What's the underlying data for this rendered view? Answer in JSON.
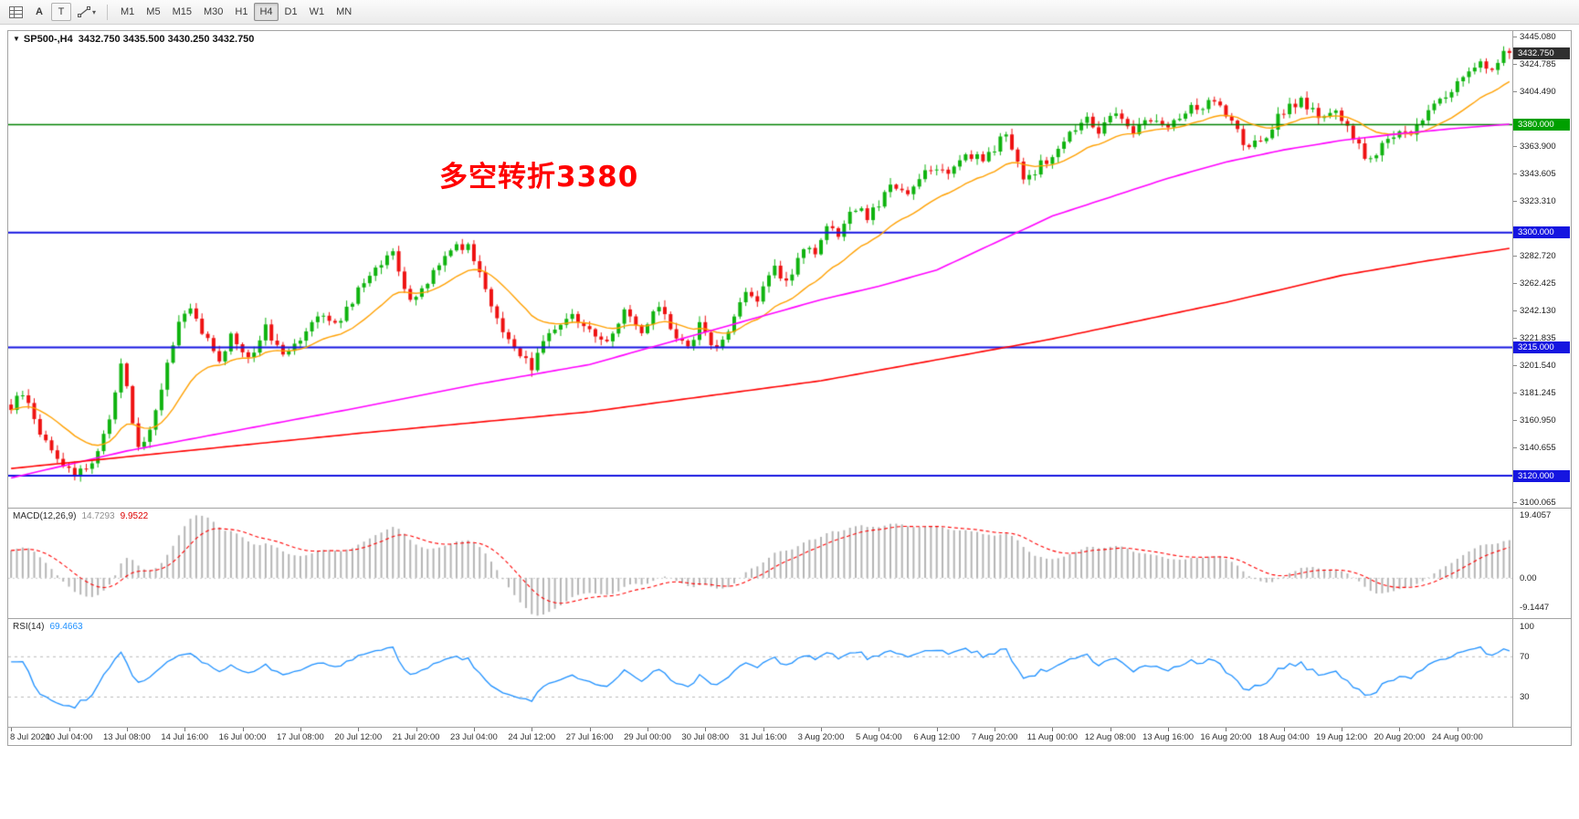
{
  "toolbar": {
    "a_label": "A",
    "t_label": "T",
    "timeframes": [
      "M1",
      "M5",
      "M15",
      "M30",
      "H1",
      "H4",
      "D1",
      "W1",
      "MN"
    ],
    "active_timeframe": "H4"
  },
  "chart": {
    "symbol_text": "SP500-,H4",
    "ohlc_text": "3432.750 3435.500 3430.250 3432.750",
    "annotation": {
      "text": "多空转折3380",
      "color": "#ff0000"
    }
  },
  "price_axis": {
    "ticks": [
      "3445.080",
      "3424.785",
      "3404.490",
      "3384.195",
      "3363.900",
      "3343.605",
      "3323.310",
      "3303.015",
      "3282.720",
      "3262.425",
      "3242.130",
      "3221.835",
      "3201.540",
      "3181.245",
      "3160.950",
      "3140.655",
      "3120.360",
      "3100.065"
    ],
    "boxes": [
      {
        "text": "3432.750",
        "value": 3432.75,
        "bg": "#2f2f2f"
      },
      {
        "text": "3380.000",
        "value": 3380,
        "bg": "#00a000"
      },
      {
        "text": "3300.000",
        "value": 3300,
        "bg": "#1515e0"
      },
      {
        "text": "3215.000",
        "value": 3215,
        "bg": "#1515e0"
      },
      {
        "text": "3120.000",
        "value": 3120,
        "bg": "#1515e0"
      }
    ]
  },
  "macd_panel": {
    "label": "MACD(12,26,9)",
    "main_value": "14.7293",
    "signal_value": "9.9522",
    "axis_labels": [
      {
        "text": "19.4057",
        "value": 19.4057
      },
      {
        "text": "0.00",
        "value": 0
      },
      {
        "text": "-9.1447",
        "value": -9.1447
      }
    ]
  },
  "rsi_panel": {
    "label": "RSI(14)",
    "value": "69.4663",
    "axis_labels": [
      {
        "text": "100",
        "value": 100
      },
      {
        "text": "70",
        "value": 70
      },
      {
        "text": "30",
        "value": 30
      }
    ],
    "levels": [
      70,
      30
    ]
  },
  "time_axis": {
    "labels": [
      "8 Jul 2020",
      "10 Jul 04:00",
      "13 Jul 08:00",
      "14 Jul 16:00",
      "16 Jul 00:00",
      "17 Jul 08:00",
      "20 Jul 12:00",
      "21 Jul 20:00",
      "23 Jul 04:00",
      "24 Jul 12:00",
      "27 Jul 16:00",
      "29 Jul 00:00",
      "30 Jul 08:00",
      "31 Jul 16:00",
      "3 Aug 20:00",
      "5 Aug 04:00",
      "6 Aug 12:00",
      "7 Aug 20:00",
      "11 Aug 00:00",
      "12 Aug 08:00",
      "13 Aug 16:00",
      "16 Aug 20:00",
      "18 Aug 04:00",
      "19 Aug 12:00",
      "20 Aug 20:00",
      "24 Aug 00:00"
    ]
  },
  "colors": {
    "candle_up": "#0fb30f",
    "candle_down": "#ee1111",
    "ma_fast": "#ffa000",
    "ma_medium": "#ff00ff",
    "ma_slow": "#ff0000",
    "hline_green": "#008000",
    "hline_blue": "#1515e0",
    "macd_hist": "#b4b4b4",
    "macd_signal": "#ff0000",
    "rsi_line": "#1e90ff"
  },
  "chart_data": {
    "type": "candlestick",
    "symbol": "SP500-",
    "timeframe": "H4",
    "ohlc_current": {
      "open": 3432.75,
      "high": 3435.5,
      "low": 3430.25,
      "close": 3432.75
    },
    "ylim": [
      3096,
      3449
    ],
    "bars_total": 260,
    "bars_per_x_label": 10,
    "price_anchors": [
      [
        0,
        3170
      ],
      [
        2,
        3181
      ],
      [
        5,
        3152
      ],
      [
        8,
        3132
      ],
      [
        11,
        3121
      ],
      [
        14,
        3129
      ],
      [
        17,
        3162
      ],
      [
        19,
        3204
      ],
      [
        22,
        3140
      ],
      [
        24,
        3152
      ],
      [
        26,
        3186
      ],
      [
        29,
        3232
      ],
      [
        31,
        3243
      ],
      [
        33,
        3228
      ],
      [
        36,
        3201
      ],
      [
        38,
        3226
      ],
      [
        41,
        3206
      ],
      [
        44,
        3229
      ],
      [
        47,
        3211
      ],
      [
        50,
        3223
      ],
      [
        53,
        3241
      ],
      [
        56,
        3231
      ],
      [
        60,
        3256
      ],
      [
        63,
        3276
      ],
      [
        66,
        3283
      ],
      [
        69,
        3247
      ],
      [
        73,
        3271
      ],
      [
        76,
        3289
      ],
      [
        79,
        3291
      ],
      [
        82,
        3259
      ],
      [
        85,
        3226
      ],
      [
        88,
        3206
      ],
      [
        90,
        3201
      ],
      [
        92,
        3219
      ],
      [
        96,
        3239
      ],
      [
        99,
        3231
      ],
      [
        103,
        3218
      ],
      [
        106,
        3244
      ],
      [
        109,
        3223
      ],
      [
        112,
        3246
      ],
      [
        115,
        3223
      ],
      [
        117,
        3213
      ],
      [
        119,
        3231
      ],
      [
        122,
        3213
      ],
      [
        124,
        3226
      ],
      [
        127,
        3259
      ],
      [
        129,
        3249
      ],
      [
        132,
        3273
      ],
      [
        134,
        3263
      ],
      [
        137,
        3289
      ],
      [
        139,
        3281
      ],
      [
        141,
        3303
      ],
      [
        143,
        3297
      ],
      [
        146,
        3319
      ],
      [
        148,
        3311
      ],
      [
        152,
        3333
      ],
      [
        155,
        3329
      ],
      [
        158,
        3346
      ],
      [
        160,
        3349
      ],
      [
        162,
        3343
      ],
      [
        165,
        3359
      ],
      [
        168,
        3353
      ],
      [
        170,
        3361
      ],
      [
        172,
        3375
      ],
      [
        175,
        3338
      ],
      [
        178,
        3350
      ],
      [
        180,
        3356
      ],
      [
        183,
        3373
      ],
      [
        186,
        3383
      ],
      [
        188,
        3376
      ],
      [
        191,
        3388
      ],
      [
        194,
        3375
      ],
      [
        197,
        3385
      ],
      [
        200,
        3379
      ],
      [
        203,
        3390
      ],
      [
        206,
        3393
      ],
      [
        208,
        3396
      ],
      [
        211,
        3380
      ],
      [
        214,
        3360
      ],
      [
        217,
        3373
      ],
      [
        220,
        3390
      ],
      [
        223,
        3398
      ],
      [
        226,
        3385
      ],
      [
        229,
        3392
      ],
      [
        232,
        3368
      ],
      [
        235,
        3352
      ],
      [
        237,
        3365
      ],
      [
        240,
        3378
      ],
      [
        242,
        3370
      ],
      [
        245,
        3390
      ],
      [
        248,
        3402
      ],
      [
        251,
        3415
      ],
      [
        254,
        3426
      ],
      [
        256,
        3418
      ],
      [
        258,
        3434
      ],
      [
        259,
        3432.75
      ]
    ],
    "hlines": [
      {
        "value": 3380,
        "color": "#008000",
        "width": 1.5
      },
      {
        "value": 3300,
        "color": "#1515e0",
        "width": 2
      },
      {
        "value": 3215,
        "color": "#1515e0",
        "width": 2
      },
      {
        "value": 3120,
        "color": "#1515e0",
        "width": 2
      }
    ],
    "moving_averages": {
      "fast": {
        "period": 18,
        "color": "#ffa000"
      },
      "medium": {
        "color": "#ff00ff",
        "points": [
          [
            0,
            3118
          ],
          [
            20,
            3138
          ],
          [
            40,
            3154
          ],
          [
            60,
            3170
          ],
          [
            80,
            3187
          ],
          [
            100,
            3202
          ],
          [
            120,
            3226
          ],
          [
            140,
            3250
          ],
          [
            150,
            3260
          ],
          [
            160,
            3272
          ],
          [
            170,
            3292
          ],
          [
            180,
            3312
          ],
          [
            190,
            3326
          ],
          [
            200,
            3340
          ],
          [
            210,
            3352
          ],
          [
            220,
            3361
          ],
          [
            230,
            3368
          ],
          [
            240,
            3373
          ],
          [
            250,
            3377
          ],
          [
            259,
            3380
          ]
        ]
      },
      "slow": {
        "color": "#ff0000",
        "points": [
          [
            0,
            3125
          ],
          [
            30,
            3138
          ],
          [
            60,
            3151
          ],
          [
            100,
            3167
          ],
          [
            140,
            3190
          ],
          [
            180,
            3221
          ],
          [
            210,
            3248
          ],
          [
            230,
            3268
          ],
          [
            245,
            3279
          ],
          [
            259,
            3288
          ]
        ]
      }
    },
    "indicators": {
      "macd": {
        "fast": 12,
        "slow": 26,
        "signal": 9,
        "current_main": 14.7293,
        "current_signal": 9.9522,
        "scale_max": 19.4057,
        "scale_min": -9.1447
      },
      "rsi": {
        "period": 14,
        "current": 69.4663,
        "levels": [
          70,
          30
        ]
      }
    }
  }
}
